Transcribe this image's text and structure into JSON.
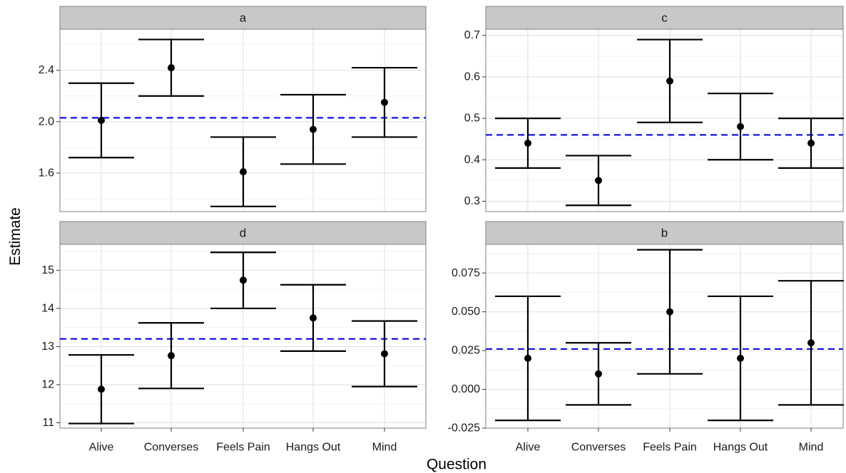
{
  "chart_data": {
    "type": "errorbar",
    "xlabel": "Question",
    "ylabel": "Estimate",
    "categories": [
      "Alive",
      "Converses",
      "Feels Pain",
      "Hangs Out",
      "Mind"
    ],
    "colors": {
      "reference_line": "#1010ee",
      "points": "#000000",
      "strip": "#c8c8c8"
    },
    "panels": [
      {
        "label": "a",
        "ylim": [
          1.3,
          2.72
        ],
        "yticks": [
          "1.6",
          "2.0",
          "2.4"
        ],
        "ytick_values": [
          1.6,
          2.0,
          2.4
        ],
        "reference_line": 2.03,
        "points": [
          {
            "x": "Alive",
            "y": 2.01,
            "lo": 1.72,
            "hi": 2.3
          },
          {
            "x": "Converses",
            "y": 2.42,
            "lo": 2.2,
            "hi": 2.64
          },
          {
            "x": "Feels Pain",
            "y": 1.61,
            "lo": 1.34,
            "hi": 1.88
          },
          {
            "x": "Hangs Out",
            "y": 1.94,
            "lo": 1.67,
            "hi": 2.21
          },
          {
            "x": "Mind",
            "y": 2.15,
            "lo": 1.88,
            "hi": 2.42
          }
        ]
      },
      {
        "label": "c",
        "ylim": [
          0.275,
          0.715
        ],
        "yticks": [
          "0.3",
          "0.4",
          "0.5",
          "0.6",
          "0.7"
        ],
        "ytick_values": [
          0.3,
          0.4,
          0.5,
          0.6,
          0.7
        ],
        "reference_line": 0.46,
        "points": [
          {
            "x": "Alive",
            "y": 0.44,
            "lo": 0.38,
            "hi": 0.5
          },
          {
            "x": "Converses",
            "y": 0.35,
            "lo": 0.29,
            "hi": 0.41
          },
          {
            "x": "Feels Pain",
            "y": 0.59,
            "lo": 0.49,
            "hi": 0.69
          },
          {
            "x": "Hangs Out",
            "y": 0.48,
            "lo": 0.4,
            "hi": 0.56
          },
          {
            "x": "Mind",
            "y": 0.44,
            "lo": 0.38,
            "hi": 0.5
          }
        ]
      },
      {
        "label": "d",
        "ylim": [
          10.86,
          15.68
        ],
        "yticks": [
          "11",
          "12",
          "13",
          "14",
          "15"
        ],
        "ytick_values": [
          11,
          12,
          13,
          14,
          15
        ],
        "reference_line": 13.2,
        "points": [
          {
            "x": "Alive",
            "y": 11.88,
            "lo": 10.98,
            "hi": 12.78
          },
          {
            "x": "Converses",
            "y": 12.76,
            "lo": 11.9,
            "hi": 13.62
          },
          {
            "x": "Feels Pain",
            "y": 14.74,
            "lo": 14.0,
            "hi": 15.47
          },
          {
            "x": "Hangs Out",
            "y": 13.75,
            "lo": 12.88,
            "hi": 14.62
          },
          {
            "x": "Mind",
            "y": 12.81,
            "lo": 11.95,
            "hi": 13.67
          }
        ]
      },
      {
        "label": "b",
        "ylim": [
          -0.025,
          0.0935
        ],
        "yticks": [
          "-0.025",
          "0.000",
          "0.025",
          "0.050",
          "0.075"
        ],
        "ytick_values": [
          -0.025,
          0.0,
          0.025,
          0.05,
          0.075
        ],
        "reference_line": 0.026,
        "points": [
          {
            "x": "Alive",
            "y": 0.02,
            "lo": -0.02,
            "hi": 0.06
          },
          {
            "x": "Converses",
            "y": 0.01,
            "lo": -0.01,
            "hi": 0.03
          },
          {
            "x": "Feels Pain",
            "y": 0.05,
            "lo": 0.01,
            "hi": 0.09
          },
          {
            "x": "Hangs Out",
            "y": 0.02,
            "lo": -0.02,
            "hi": 0.06
          },
          {
            "x": "Mind",
            "y": 0.03,
            "lo": -0.01,
            "hi": 0.07
          }
        ]
      }
    ]
  }
}
